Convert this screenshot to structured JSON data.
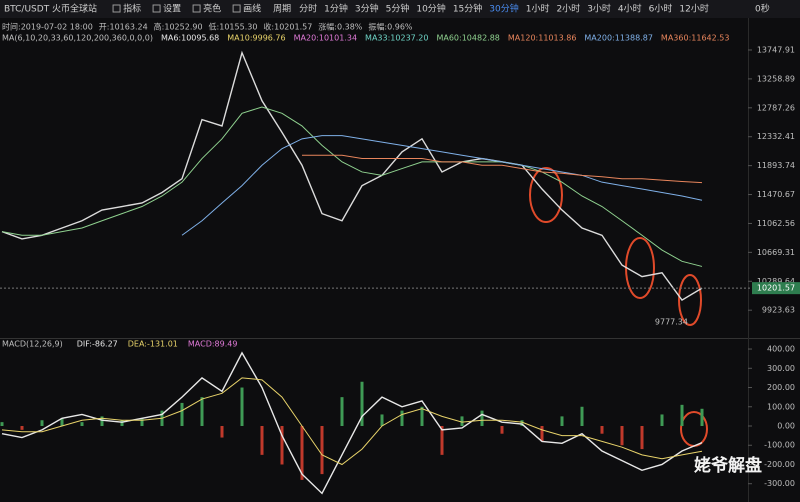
{
  "toolbar": {
    "symbol": "BTC/USDT 火币全球站",
    "buttons": [
      "指标",
      "设置",
      "亮色",
      "画线"
    ],
    "period_label": "周期",
    "periods": [
      "分时",
      "1分钟",
      "3分钟",
      "5分钟",
      "10分钟",
      "15分钟",
      "30分钟",
      "1小时",
      "2小时",
      "3小时",
      "4小时",
      "6小时",
      "12小时"
    ],
    "active_period_index": 6,
    "timer": "0秒"
  },
  "info": [
    "时间:2019-07-02 18:00",
    "开:10163.24",
    "高:10252.90",
    "低:10155.30",
    "收:10201.57",
    "涨幅:0.38%",
    "振幅:0.96%"
  ],
  "ma_legend": {
    "title": "MA(6,10,20,33,60,120,200,360,0,0,0)",
    "items": [
      {
        "text": "MA6:10095.68",
        "color": "#e8e8e8"
      },
      {
        "text": "MA10:9996.76",
        "color": "#e8d36a"
      },
      {
        "text": "MA20:10101.34",
        "color": "#e07ad8"
      },
      {
        "text": "MA33:10237.20",
        "color": "#6fd6c8"
      },
      {
        "text": "MA60:10482.88",
        "color": "#8fd18f"
      },
      {
        "text": "MA120:11013.86",
        "color": "#e8855c"
      },
      {
        "text": "MA200:11388.87",
        "color": "#7fb0e8"
      },
      {
        "text": "MA360:11642.53",
        "color": "#e8855c"
      }
    ]
  },
  "macd_legend": {
    "title": "MACD(12,26,9)",
    "items": [
      {
        "text": "DIF:-86.27",
        "color": "#e8e8e8"
      },
      {
        "text": "DEA:-131.01",
        "color": "#e8d36a"
      },
      {
        "text": "MACD:89.49",
        "color": "#e07ad8"
      }
    ]
  },
  "watermark": "姥爷解盘",
  "chart_data": [
    {
      "type": "line",
      "log_scale": true,
      "ylim": [
        9620,
        13834
      ],
      "yticks": [
        13747.91,
        13258.89,
        12787.26,
        12332.41,
        11893.74,
        11470.67,
        11062.56,
        10669.31,
        10289.64,
        9923.63
      ],
      "current_price": 10201.57,
      "low_annotation": 9777.34,
      "series": [
        {
          "name": "Close",
          "color": "#dcdcdc",
          "values": [
            10950,
            10850,
            10900,
            11000,
            11100,
            11250,
            11300,
            11350,
            11500,
            11700,
            12600,
            12500,
            13700,
            12900,
            12400,
            11900,
            11200,
            11100,
            11600,
            11750,
            12100,
            12300,
            11800,
            11950,
            12000,
            11950,
            11900,
            11550,
            11250,
            11000,
            10900,
            10500,
            10350,
            10400,
            10050,
            10201.57
          ]
        },
        {
          "name": "MA60",
          "color": "#8fd18f",
          "values": [
            10950,
            10900,
            10900,
            10950,
            11000,
            11100,
            11200,
            11300,
            11450,
            11650,
            12000,
            12300,
            12700,
            12800,
            12700,
            12500,
            12200,
            11950,
            11800,
            11750,
            11850,
            11950,
            11950,
            11950,
            11950,
            11950,
            11900,
            11800,
            11650,
            11450,
            11300,
            11100,
            10900,
            10700,
            10550,
            10482.88
          ]
        },
        {
          "name": "MA200",
          "color": "#7fb0e8",
          "values": [
            null,
            null,
            null,
            null,
            null,
            null,
            null,
            null,
            null,
            10900,
            11100,
            11350,
            11600,
            11900,
            12150,
            12300,
            12350,
            12350,
            12300,
            12250,
            12200,
            12150,
            12100,
            12050,
            12000,
            11950,
            11900,
            11850,
            11800,
            11750,
            11650,
            11600,
            11550,
            11500,
            11450,
            11388.87
          ]
        },
        {
          "name": "MA360",
          "color": "#e8855c",
          "values": [
            null,
            null,
            null,
            null,
            null,
            null,
            null,
            null,
            null,
            null,
            null,
            null,
            null,
            null,
            null,
            12050,
            12050,
            12050,
            12000,
            12000,
            12000,
            12000,
            11950,
            11950,
            11900,
            11900,
            11850,
            11800,
            11780,
            11750,
            11730,
            11700,
            11700,
            11680,
            11660,
            11642.53
          ]
        }
      ]
    },
    {
      "type": "bar",
      "ylim": [
        -395,
        447
      ],
      "yticks": [
        {
          "value": 400,
          "label": "400.00"
        },
        {
          "value": 300,
          "label": "300.00"
        },
        {
          "value": 200,
          "label": "200.00"
        },
        {
          "value": 100,
          "label": "100.00"
        },
        {
          "value": 0,
          "label": "0.00"
        },
        {
          "value": -100,
          "label": "-100.00"
        },
        {
          "value": -200,
          "label": "-200.00"
        },
        {
          "value": -300,
          "label": "-300.00"
        }
      ],
      "up_color": "#3f9a55",
      "down_color": "#c0392b",
      "values": [
        20,
        -20,
        30,
        40,
        20,
        50,
        30,
        40,
        80,
        120,
        150,
        -60,
        200,
        -150,
        -200,
        -280,
        -250,
        150,
        230,
        60,
        80,
        100,
        -150,
        50,
        80,
        -40,
        30,
        -80,
        50,
        100,
        -40,
        -100,
        -120,
        60,
        110,
        89.49
      ],
      "series": [
        {
          "name": "DIF",
          "color": "#e8e8e8",
          "values": [
            -40,
            -60,
            -20,
            40,
            60,
            30,
            20,
            40,
            60,
            150,
            250,
            180,
            380,
            200,
            -50,
            -250,
            -350,
            -150,
            50,
            150,
            100,
            130,
            -20,
            -10,
            60,
            20,
            10,
            -80,
            -90,
            -40,
            -130,
            -180,
            -230,
            -200,
            -130,
            -86.27
          ]
        },
        {
          "name": "DEA",
          "color": "#e8d36a",
          "values": [
            -20,
            -30,
            -30,
            0,
            30,
            40,
            30,
            30,
            40,
            80,
            140,
            170,
            250,
            240,
            150,
            0,
            -150,
            -200,
            -120,
            0,
            60,
            90,
            50,
            20,
            30,
            30,
            20,
            -20,
            -50,
            -50,
            -80,
            -110,
            -150,
            -170,
            -150,
            -131.01
          ]
        }
      ]
    }
  ]
}
